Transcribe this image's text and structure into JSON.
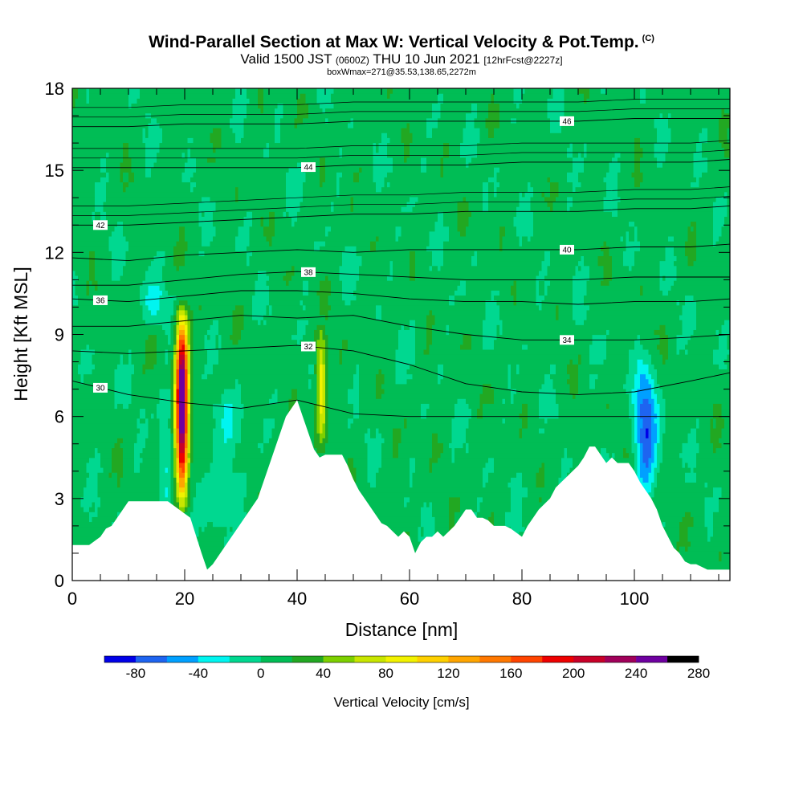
{
  "title": {
    "main": "Wind-Parallel Section at Max W: Vertical Velocity & Pot.Temp.",
    "copyright": "(C)",
    "valid_prefix": "Valid 1500 JST",
    "valid_z": "(0600Z)",
    "valid_date": "THU 10 Jun 2021",
    "forecast": "[12hrFcst@2227z]",
    "box_info": "boxWmax=271@35.53,138.65,2272m"
  },
  "colors": {
    "levels": [
      "#0000e8",
      "#1e64f0",
      "#00a0ff",
      "#00f5f0",
      "#00d890",
      "#00bd55",
      "#22a822",
      "#7dd000",
      "#c8e600",
      "#f2f200",
      "#fed000",
      "#ffa500",
      "#ff7800",
      "#ff4400",
      "#ee0000",
      "#c80028",
      "#a0005a",
      "#6e00a0"
    ],
    "terrain": "#ffffff",
    "contour": "#000000"
  },
  "chart_data": {
    "type": "heatmap",
    "title": "Wind-Parallel Section at Max W: Vertical Velocity & Pot.Temp.",
    "xlabel": "Distance [nm]",
    "ylabel": "Height [Kft MSL]",
    "xlim": [
      0,
      117
    ],
    "ylim": [
      0,
      18
    ],
    "xticks": [
      "0",
      "20",
      "40",
      "60",
      "80",
      "100"
    ],
    "yticks": [
      "0",
      "3",
      "6",
      "9",
      "12",
      "15",
      "18"
    ],
    "colorbar": {
      "title": "Vertical Velocity [cm/s]",
      "boundaries": [
        -100,
        -80,
        -60,
        -40,
        -20,
        0,
        20,
        40,
        60,
        80,
        100,
        120,
        140,
        160,
        180,
        200,
        220,
        240,
        260,
        280
      ],
      "labels": [
        "-80",
        "-40",
        "0",
        "40",
        "80",
        "120",
        "160",
        "200",
        "240",
        "280"
      ]
    },
    "terrain_profile": {
      "x": [
        0,
        3,
        5,
        6,
        7,
        8,
        9,
        10,
        11,
        12,
        13,
        17,
        19,
        21,
        23,
        24,
        25,
        26,
        27,
        28,
        29,
        30,
        31,
        32,
        33,
        34,
        35,
        36,
        37,
        38,
        40,
        41,
        42,
        43,
        44,
        45,
        48,
        49,
        50,
        51,
        52,
        53,
        54,
        55,
        56,
        57,
        58,
        59,
        60,
        61,
        62,
        63,
        64,
        65,
        66,
        67,
        68,
        69,
        70,
        71,
        72,
        73,
        74,
        75,
        77,
        78,
        80,
        81,
        82,
        83,
        84,
        85,
        86,
        87,
        88,
        89,
        90,
        91,
        92,
        93,
        95,
        96,
        97,
        99,
        100,
        101,
        102,
        103,
        104,
        105,
        106,
        107,
        108,
        109,
        110,
        111,
        112,
        113,
        114,
        117
      ],
      "y": [
        1.3,
        1.3,
        1.6,
        1.9,
        2.0,
        2.3,
        2.6,
        2.9,
        2.9,
        2.9,
        2.9,
        2.9,
        2.6,
        2.3,
        1.0,
        0.4,
        0.6,
        0.9,
        1.2,
        1.5,
        1.8,
        2.1,
        2.4,
        2.7,
        3.0,
        3.6,
        4.2,
        4.8,
        5.4,
        6.0,
        6.6,
        6.0,
        5.4,
        4.8,
        4.5,
        4.6,
        4.6,
        4.2,
        3.7,
        3.3,
        3.0,
        2.7,
        2.4,
        2.1,
        2.0,
        1.8,
        1.6,
        1.8,
        1.6,
        1.0,
        1.4,
        1.6,
        1.6,
        1.8,
        1.6,
        1.8,
        2.0,
        2.3,
        2.6,
        2.6,
        2.3,
        2.3,
        2.2,
        2.0,
        2.0,
        1.9,
        1.6,
        2.0,
        2.3,
        2.6,
        2.8,
        3.0,
        3.4,
        3.6,
        3.8,
        4.0,
        4.2,
        4.5,
        4.9,
        4.9,
        4.3,
        4.5,
        4.3,
        4.3,
        4.0,
        3.6,
        3.3,
        3.0,
        2.6,
        2.0,
        1.6,
        1.2,
        1.0,
        0.7,
        0.6,
        0.6,
        0.5,
        0.4,
        0.4,
        0.4
      ]
    },
    "updrafts": [
      {
        "x": 19.5,
        "top": 9.9,
        "bottom": 2.3,
        "max": 270
      },
      {
        "x": 44.3,
        "top": 9.0,
        "bottom": 4.6,
        "max": 95
      }
    ],
    "downdrafts": [
      {
        "x": 102,
        "top": 8.5,
        "bottom": 2.5,
        "min": -80
      },
      {
        "x": 14.5,
        "top": 11.2,
        "bottom": 9.0,
        "min": -35
      }
    ],
    "isentropes": [
      {
        "label": "30",
        "y": [
          7.3,
          6.8,
          6.5,
          6.3,
          6.2,
          6.1,
          6.0,
          6.0,
          6.0,
          6.0,
          6.0,
          6.0,
          6.0
        ]
      },
      {
        "label": "32",
        "y": [
          8.4,
          8.3,
          8.4,
          8.5,
          8.6,
          8.4,
          7.9,
          7.2,
          6.9,
          6.8,
          6.9,
          7.3,
          7.6
        ]
      },
      {
        "label": "34",
        "y": [
          9.3,
          9.3,
          9.5,
          9.7,
          9.6,
          9.7,
          9.3,
          9.0,
          8.8,
          8.8,
          8.8,
          8.9,
          9.0
        ]
      },
      {
        "label": "36",
        "y": [
          10.3,
          10.2,
          10.4,
          10.6,
          10.6,
          10.5,
          10.3,
          10.2,
          10.2,
          10.1,
          10.2,
          10.2,
          10.3
        ]
      },
      {
        "label": "38",
        "y": [
          10.8,
          10.8,
          11.0,
          11.2,
          11.3,
          11.2,
          11.1,
          11.0,
          11.0,
          11.0,
          11.1,
          11.1,
          11.1
        ]
      },
      {
        "label": "40",
        "y": [
          11.8,
          11.7,
          11.9,
          12.0,
          12.1,
          12.0,
          12.1,
          12.1,
          12.1,
          12.1,
          12.2,
          12.2,
          12.3
        ]
      },
      {
        "label": "42",
        "y": [
          13.0,
          13.0,
          13.1,
          13.2,
          13.3,
          13.4,
          13.4,
          13.5,
          13.5,
          13.5,
          13.6,
          13.6,
          13.7
        ]
      },
      {
        "label": "44",
        "y": [
          15.1,
          15.1,
          15.1,
          15.1,
          15.1,
          15.2,
          15.2,
          15.2,
          15.3,
          15.3,
          15.3,
          15.3,
          15.4
        ]
      },
      {
        "label": "46",
        "y": [
          16.6,
          16.6,
          16.7,
          16.7,
          16.7,
          16.8,
          16.8,
          16.8,
          16.8,
          16.8,
          16.9,
          16.9,
          16.9
        ]
      }
    ],
    "isentrope_x": [
      0,
      10,
      20,
      30,
      40,
      50,
      60,
      70,
      80,
      90,
      100,
      110,
      117
    ],
    "grid": false,
    "legend": "colorbar-bottom"
  }
}
